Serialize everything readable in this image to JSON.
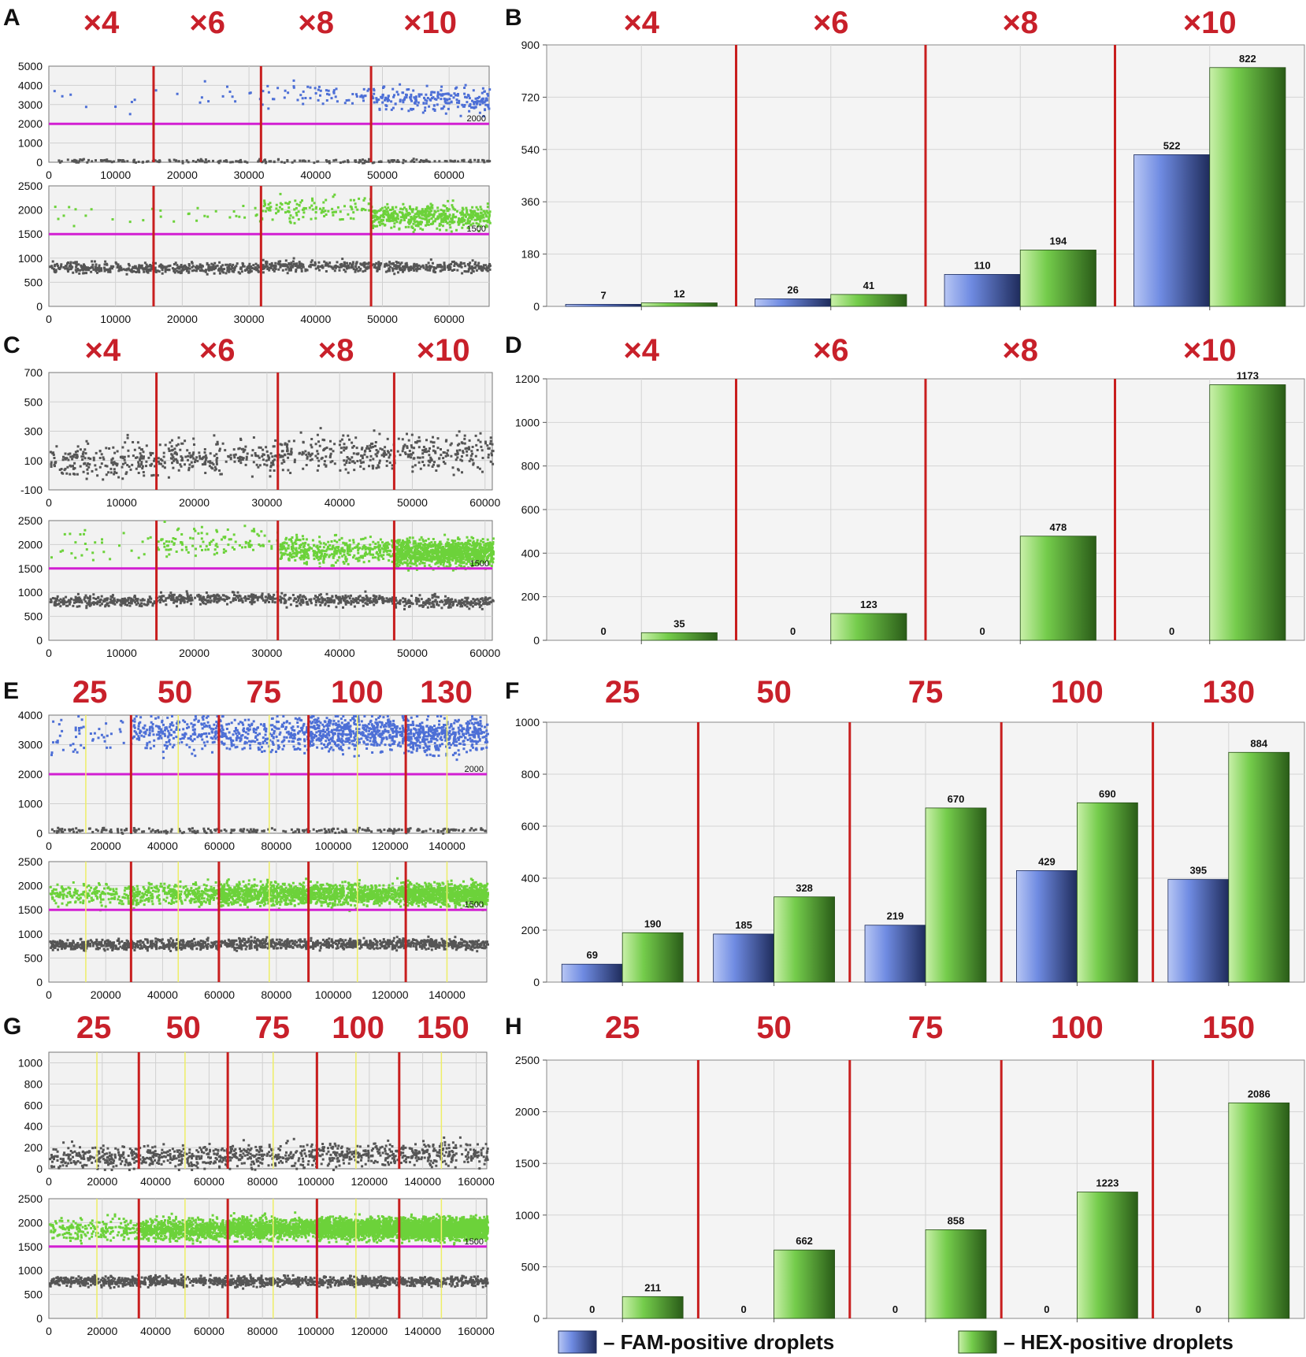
{
  "colors": {
    "fam": "#4d6fd6",
    "hex": "#6cd23a",
    "negative": "#555555",
    "threshold": "#d21fd2",
    "separator": "#c81e1e",
    "subdivider": "#eeee66",
    "header": "#c8202a"
  },
  "legend": {
    "fam_label": "– FAM-positive droplets",
    "hex_label": "– HEX-positive droplets"
  },
  "chart_data": [
    {
      "panel": "A",
      "type": "scatter",
      "headers": [
        "×4",
        "×6",
        "×8",
        "×10"
      ],
      "separators": [
        15700,
        31800,
        48300
      ],
      "subdividers": [],
      "xlim": [
        0,
        66000
      ],
      "xticks": [
        0,
        10000,
        20000,
        30000,
        40000,
        50000,
        60000
      ],
      "top": {
        "ylim": [
          0,
          5000
        ],
        "yticks": [
          0,
          1000,
          2000,
          3000,
          4000,
          5000
        ],
        "threshold": 2000,
        "threshold_label": "2000",
        "pos_channel": "fam",
        "pos_level": [
          3300,
          3500,
          3600,
          3300
        ],
        "pos_spread": 330,
        "pos_density": [
          8,
          15,
          60,
          230
        ],
        "neg_level": [
          120,
          120,
          120,
          120
        ],
        "neg_spread": 45,
        "neg_density": 220
      },
      "bottom": {
        "ylim": [
          0,
          2500
        ],
        "yticks": [
          0,
          500,
          1000,
          1500,
          2000,
          2500
        ],
        "threshold": 1500,
        "threshold_label": "1500",
        "pos_channel": "hex",
        "pos_level": [
          1920,
          1950,
          2050,
          1880
        ],
        "pos_spread": 120,
        "pos_density": [
          12,
          22,
          120,
          500
        ],
        "neg_level": [
          820,
          820,
          860,
          840
        ],
        "neg_spread": 55,
        "neg_density": 900
      }
    },
    {
      "panel": "B",
      "type": "bar",
      "headers": [
        "×4",
        "×6",
        "×8",
        "×10"
      ],
      "categories": [
        "×4",
        "×6",
        "×8",
        "×10"
      ],
      "ylim": [
        0,
        900
      ],
      "yticks": [
        0,
        180,
        360,
        540,
        720,
        900
      ],
      "series": [
        {
          "name": "FAM-positive droplets",
          "values": [
            7,
            26,
            110,
            522
          ]
        },
        {
          "name": "HEX-positive droplets",
          "values": [
            12,
            41,
            194,
            822
          ]
        }
      ]
    },
    {
      "panel": "C",
      "type": "scatter",
      "headers": [
        "×4",
        "×6",
        "×8",
        "×10"
      ],
      "separators": [
        14800,
        31500,
        47500
      ],
      "subdividers": [],
      "xlim": [
        0,
        61000
      ],
      "xticks": [
        0,
        10000,
        20000,
        30000,
        40000,
        50000,
        60000
      ],
      "top": {
        "ylim": [
          -100,
          700
        ],
        "yticks": [
          -100,
          100,
          300,
          500,
          700
        ],
        "threshold": null,
        "threshold_label": "",
        "pos_channel": "none",
        "pos_level": [
          0,
          0,
          0,
          0
        ],
        "pos_spread": 0,
        "pos_density": [
          0,
          0,
          0,
          0
        ],
        "neg_level": [
          110,
          130,
          150,
          170
        ],
        "neg_spread": 60,
        "neg_density": 800
      },
      "bottom": {
        "ylim": [
          0,
          2500
        ],
        "yticks": [
          0,
          500,
          1000,
          1500,
          2000,
          2500
        ],
        "threshold": 1500,
        "threshold_label": "1500",
        "pos_channel": "hex",
        "pos_level": [
          2000,
          2100,
          1900,
          1850
        ],
        "pos_spread": 140,
        "pos_density": [
          30,
          110,
          400,
          1100
        ],
        "neg_level": [
          840,
          900,
          860,
          820
        ],
        "neg_spread": 60,
        "neg_density": 900
      }
    },
    {
      "panel": "D",
      "type": "bar",
      "headers": [
        "×4",
        "×6",
        "×8",
        "×10"
      ],
      "categories": [
        "×4",
        "×6",
        "×8",
        "×10"
      ],
      "ylim": [
        0,
        1200
      ],
      "yticks": [
        0,
        200,
        400,
        600,
        800,
        1000,
        1200
      ],
      "series": [
        {
          "name": "FAM-positive droplets",
          "values": [
            0,
            0,
            0,
            0
          ]
        },
        {
          "name": "HEX-positive droplets",
          "values": [
            35,
            123,
            478,
            1173
          ]
        }
      ]
    },
    {
      "panel": "E",
      "type": "scatter",
      "headers": [
        "25",
        "50",
        "75",
        "100",
        "130"
      ],
      "separators": [
        28900,
        59800,
        91300,
        125500
      ],
      "subdividers": [
        13000,
        45500,
        77500,
        108500,
        140000
      ],
      "xlim": [
        0,
        154000
      ],
      "xticks": [
        0,
        20000,
        40000,
        60000,
        80000,
        100000,
        120000,
        140000
      ],
      "top": {
        "ylim": [
          0,
          4000
        ],
        "yticks": [
          0,
          1000,
          2000,
          3000,
          4000
        ],
        "threshold": 2000,
        "threshold_label": "2000",
        "pos_channel": "fam",
        "pos_level": [
          3400,
          3450,
          3400,
          3450,
          3350
        ],
        "pos_spread": 300,
        "pos_density": [
          50,
          230,
          260,
          520,
          420
        ],
        "neg_level": [
          130,
          130,
          130,
          130,
          130
        ],
        "neg_spread": 45,
        "neg_density": 260
      },
      "bottom": {
        "ylim": [
          0,
          2500
        ],
        "yticks": [
          0,
          500,
          1000,
          1500,
          2000,
          2500
        ],
        "threshold": 1500,
        "threshold_label": "1500",
        "pos_channel": "hex",
        "pos_level": [
          1850,
          1850,
          1850,
          1850,
          1850
        ],
        "pos_spread": 110,
        "pos_density": [
          190,
          330,
          670,
          690,
          880
        ],
        "neg_level": [
          800,
          800,
          820,
          820,
          810
        ],
        "neg_spread": 55,
        "neg_density": 1300
      }
    },
    {
      "panel": "F",
      "type": "bar",
      "headers": [
        "25",
        "50",
        "75",
        "100",
        "130"
      ],
      "categories": [
        "25",
        "50",
        "75",
        "100",
        "130"
      ],
      "ylim": [
        0,
        1000
      ],
      "yticks": [
        0,
        200,
        400,
        600,
        800,
        1000
      ],
      "series": [
        {
          "name": "FAM-positive droplets",
          "values": [
            69,
            185,
            219,
            429,
            395
          ]
        },
        {
          "name": "HEX-positive droplets",
          "values": [
            190,
            328,
            670,
            690,
            884
          ]
        }
      ]
    },
    {
      "panel": "G",
      "type": "scatter",
      "headers": [
        "25",
        "50",
        "75",
        "100",
        "150"
      ],
      "separators": [
        33700,
        67000,
        100400,
        131200
      ],
      "subdividers": [
        18000,
        51000,
        84000,
        115000,
        147000
      ],
      "xlim": [
        0,
        164000
      ],
      "xticks": [
        0,
        20000,
        40000,
        60000,
        80000,
        100000,
        120000,
        140000,
        160000
      ],
      "top": {
        "ylim": [
          0,
          1100
        ],
        "yticks": [
          0,
          200,
          400,
          600,
          800,
          1000
        ],
        "threshold": null,
        "threshold_label": "",
        "pos_channel": "none",
        "pos_level": [
          0,
          0,
          0,
          0,
          0
        ],
        "pos_spread": 0,
        "pos_density": [
          0,
          0,
          0,
          0,
          0
        ],
        "neg_level": [
          120,
          130,
          140,
          140,
          150
        ],
        "neg_spread": 55,
        "neg_density": 1000
      },
      "bottom": {
        "ylim": [
          0,
          2500
        ],
        "yticks": [
          0,
          500,
          1000,
          1500,
          2000,
          2500
        ],
        "threshold": 1500,
        "threshold_label": "1500",
        "pos_channel": "hex",
        "pos_level": [
          1880,
          1880,
          1900,
          1900,
          1900
        ],
        "pos_spread": 110,
        "pos_density": [
          210,
          660,
          860,
          1220,
          2000
        ],
        "neg_level": [
          800,
          800,
          800,
          800,
          800
        ],
        "neg_spread": 55,
        "neg_density": 1300
      }
    },
    {
      "panel": "H",
      "type": "bar",
      "headers": [
        "25",
        "50",
        "75",
        "100",
        "150"
      ],
      "categories": [
        "25",
        "50",
        "75",
        "100",
        "150"
      ],
      "ylim": [
        0,
        2500
      ],
      "yticks": [
        0,
        500,
        1000,
        1500,
        2000,
        2500
      ],
      "series": [
        {
          "name": "FAM-positive droplets",
          "values": [
            0,
            0,
            0,
            0,
            0
          ]
        },
        {
          "name": "HEX-positive droplets",
          "values": [
            211,
            662,
            858,
            1223,
            2086
          ]
        }
      ]
    }
  ]
}
